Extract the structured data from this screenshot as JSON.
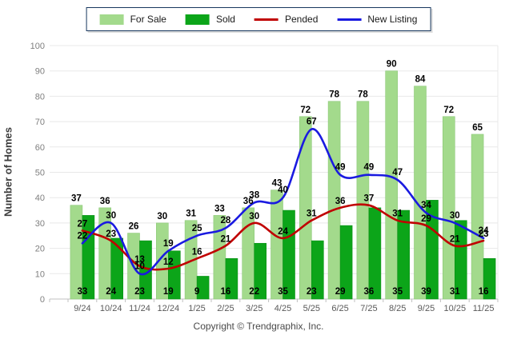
{
  "chart_data": {
    "type": "bar",
    "title": "",
    "categories": [
      "9/24",
      "10/24",
      "11/24",
      "12/24",
      "1/25",
      "2/25",
      "3/25",
      "4/25",
      "5/25",
      "6/25",
      "7/25",
      "8/25",
      "9/25",
      "10/25",
      "11/25"
    ],
    "series": [
      {
        "name": "For Sale",
        "kind": "bar",
        "color": "#A3DA8C",
        "edge": "#8cc878",
        "values": [
          37,
          36,
          26,
          30,
          31,
          33,
          36,
          43,
          72,
          78,
          78,
          90,
          84,
          72,
          65
        ]
      },
      {
        "name": "Sold",
        "kind": "bar",
        "color": "#0CA519",
        "edge": "#0a8f16",
        "values": [
          33,
          24,
          23,
          19,
          9,
          16,
          22,
          35,
          23,
          29,
          36,
          35,
          39,
          31,
          16
        ]
      },
      {
        "name": "Pended",
        "kind": "line",
        "color": "#C00000",
        "values": [
          27,
          23,
          13,
          12,
          16,
          21,
          30,
          24,
          31,
          36,
          37,
          31,
          29,
          21,
          23
        ]
      },
      {
        "name": "New Listing",
        "kind": "line",
        "color": "#1A1AE0",
        "values": [
          22,
          30,
          10,
          19,
          25,
          28,
          38,
          40,
          67,
          49,
          49,
          47,
          34,
          30,
          24
        ]
      }
    ],
    "xlabel": "",
    "ylabel": "Number of Homes",
    "ylim": [
      0,
      100
    ],
    "ytick_step": 10,
    "grid": "horizontal",
    "legend_position": "top-center",
    "value_labels": true
  },
  "footer": {
    "copyright": "Copyright © Trendgraphix, Inc."
  },
  "colors": {
    "gridline": "#e8e8e8",
    "axis_line": "#c0c0c0",
    "tick_label": "#7f7f7f",
    "x_label": "#595959",
    "value_label": "#000000",
    "legend_border": "#17375e"
  }
}
